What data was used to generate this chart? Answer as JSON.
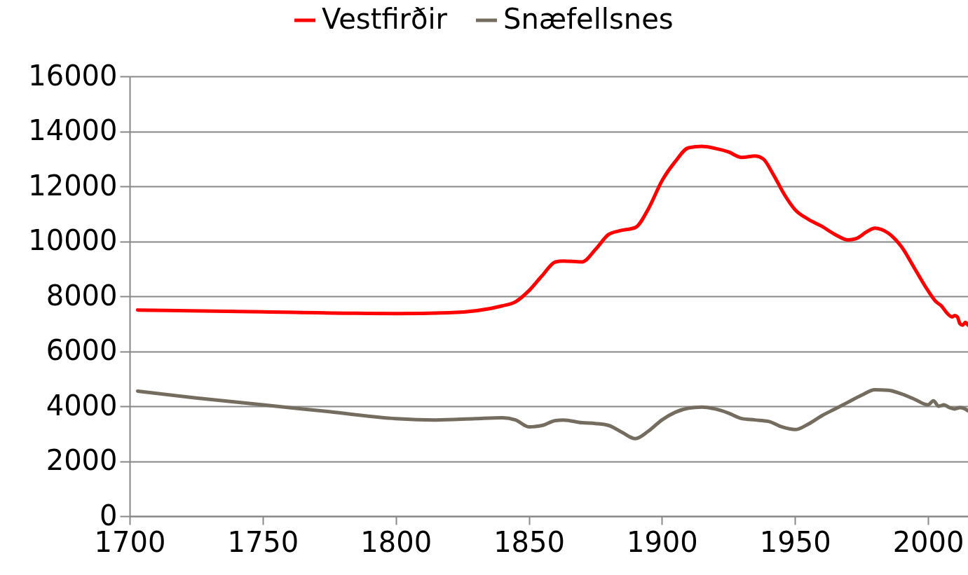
{
  "chart_data": {
    "type": "line",
    "xlim": [
      1700,
      2015
    ],
    "xticks": [
      1700,
      1750,
      1800,
      1850,
      1900,
      1950,
      2000
    ],
    "ylim": [
      0,
      16000
    ],
    "yticks": [
      0,
      2000,
      4000,
      6000,
      8000,
      10000,
      12000,
      14000,
      16000
    ],
    "grid": "y",
    "legend": "top",
    "line_style": "solid",
    "series": [
      {
        "name": "Vestfirðir",
        "color": "#ff0000",
        "x": [
          1703,
          1750,
          1800,
          1820,
          1840,
          1845,
          1850,
          1855,
          1860,
          1863,
          1870,
          1875,
          1880,
          1884,
          1890,
          1895,
          1900,
          1905,
          1910,
          1915,
          1920,
          1925,
          1930,
          1935,
          1938,
          1942,
          1946,
          1950,
          1955,
          1960,
          1965,
          1970,
          1973,
          1977,
          1980,
          1985,
          1990,
          1995,
          2000,
          2003,
          2005,
          2007,
          2009,
          2010,
          2011,
          2012,
          2013,
          2014,
          2015
        ],
        "values": [
          7500,
          7430,
          7370,
          7400,
          7650,
          7800,
          8200,
          8750,
          9250,
          9280,
          9250,
          9700,
          10250,
          10380,
          10500,
          11200,
          12200,
          12900,
          13400,
          13450,
          13380,
          13250,
          13050,
          13100,
          13000,
          12400,
          11700,
          11150,
          10800,
          10550,
          10250,
          10050,
          10100,
          10350,
          10480,
          10300,
          9800,
          9000,
          8200,
          7800,
          7650,
          7400,
          7250,
          7300,
          7250,
          7000,
          6950,
          7050,
          6950
        ]
      },
      {
        "name": "Snæfellsnes",
        "color": "#756c60",
        "x": [
          1703,
          1725,
          1750,
          1775,
          1800,
          1815,
          1830,
          1840,
          1845,
          1850,
          1855,
          1860,
          1863,
          1870,
          1875,
          1880,
          1885,
          1890,
          1895,
          1900,
          1905,
          1910,
          1915,
          1920,
          1925,
          1930,
          1935,
          1940,
          1945,
          1950,
          1955,
          1960,
          1965,
          1970,
          1975,
          1980,
          1985,
          1990,
          1995,
          2000,
          2002,
          2004,
          2006,
          2008,
          2010,
          2012,
          2014,
          2015
        ],
        "values": [
          4550,
          4300,
          4050,
          3800,
          3550,
          3500,
          3550,
          3580,
          3500,
          3250,
          3300,
          3480,
          3500,
          3400,
          3370,
          3300,
          3050,
          2820,
          3100,
          3500,
          3780,
          3930,
          3970,
          3900,
          3750,
          3550,
          3500,
          3450,
          3250,
          3150,
          3350,
          3650,
          3900,
          4150,
          4400,
          4600,
          4580,
          4450,
          4250,
          4050,
          4200,
          4000,
          4050,
          3950,
          3900,
          3950,
          3900,
          3830
        ]
      }
    ]
  }
}
